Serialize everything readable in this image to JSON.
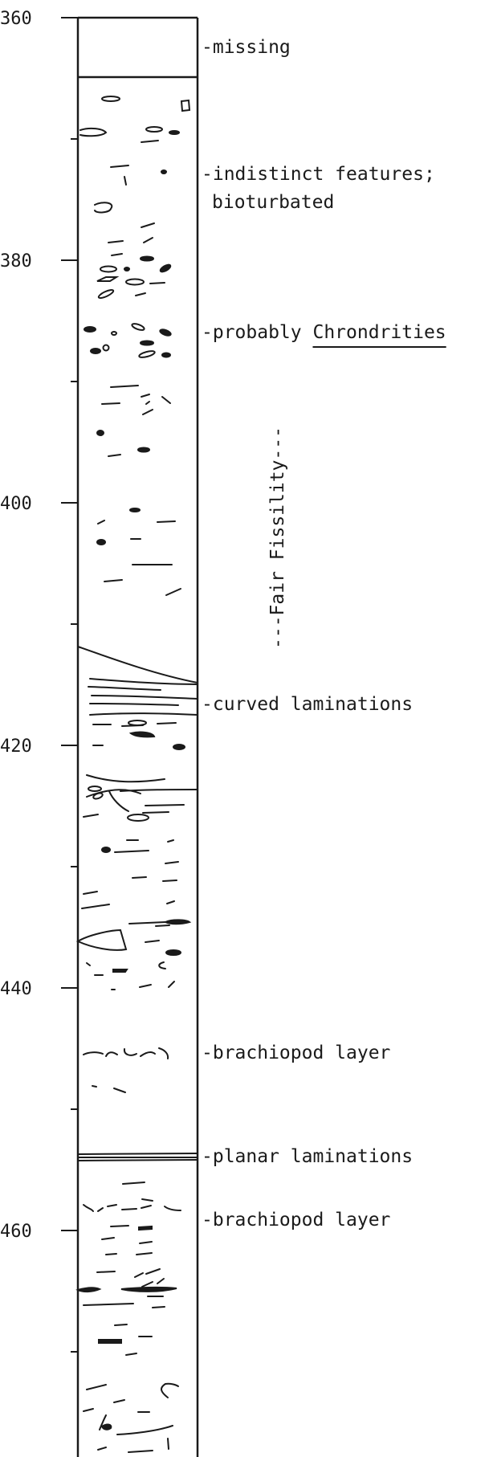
{
  "depth_axis": {
    "min": 360,
    "max": 480,
    "ticks": [
      "360",
      "380",
      "400",
      "420",
      "440",
      "460"
    ]
  },
  "annotations": {
    "missing": "-missing",
    "indistinct_line1": "-indistinct features;",
    "indistinct_line2": "bioturbated",
    "chondrites_prefix": "-probably ",
    "chondrites_name": "Chrondrities",
    "curved": "-curved laminations",
    "brachiopod_1": "-brachiopod layer",
    "planar": "-planar laminations",
    "brachiopod_2": "-brachiopod layer"
  },
  "fissility": {
    "label": "---Fair  Fissility---"
  },
  "colors": {
    "ink": "#1a1a1a",
    "paper": "#ffffff"
  }
}
